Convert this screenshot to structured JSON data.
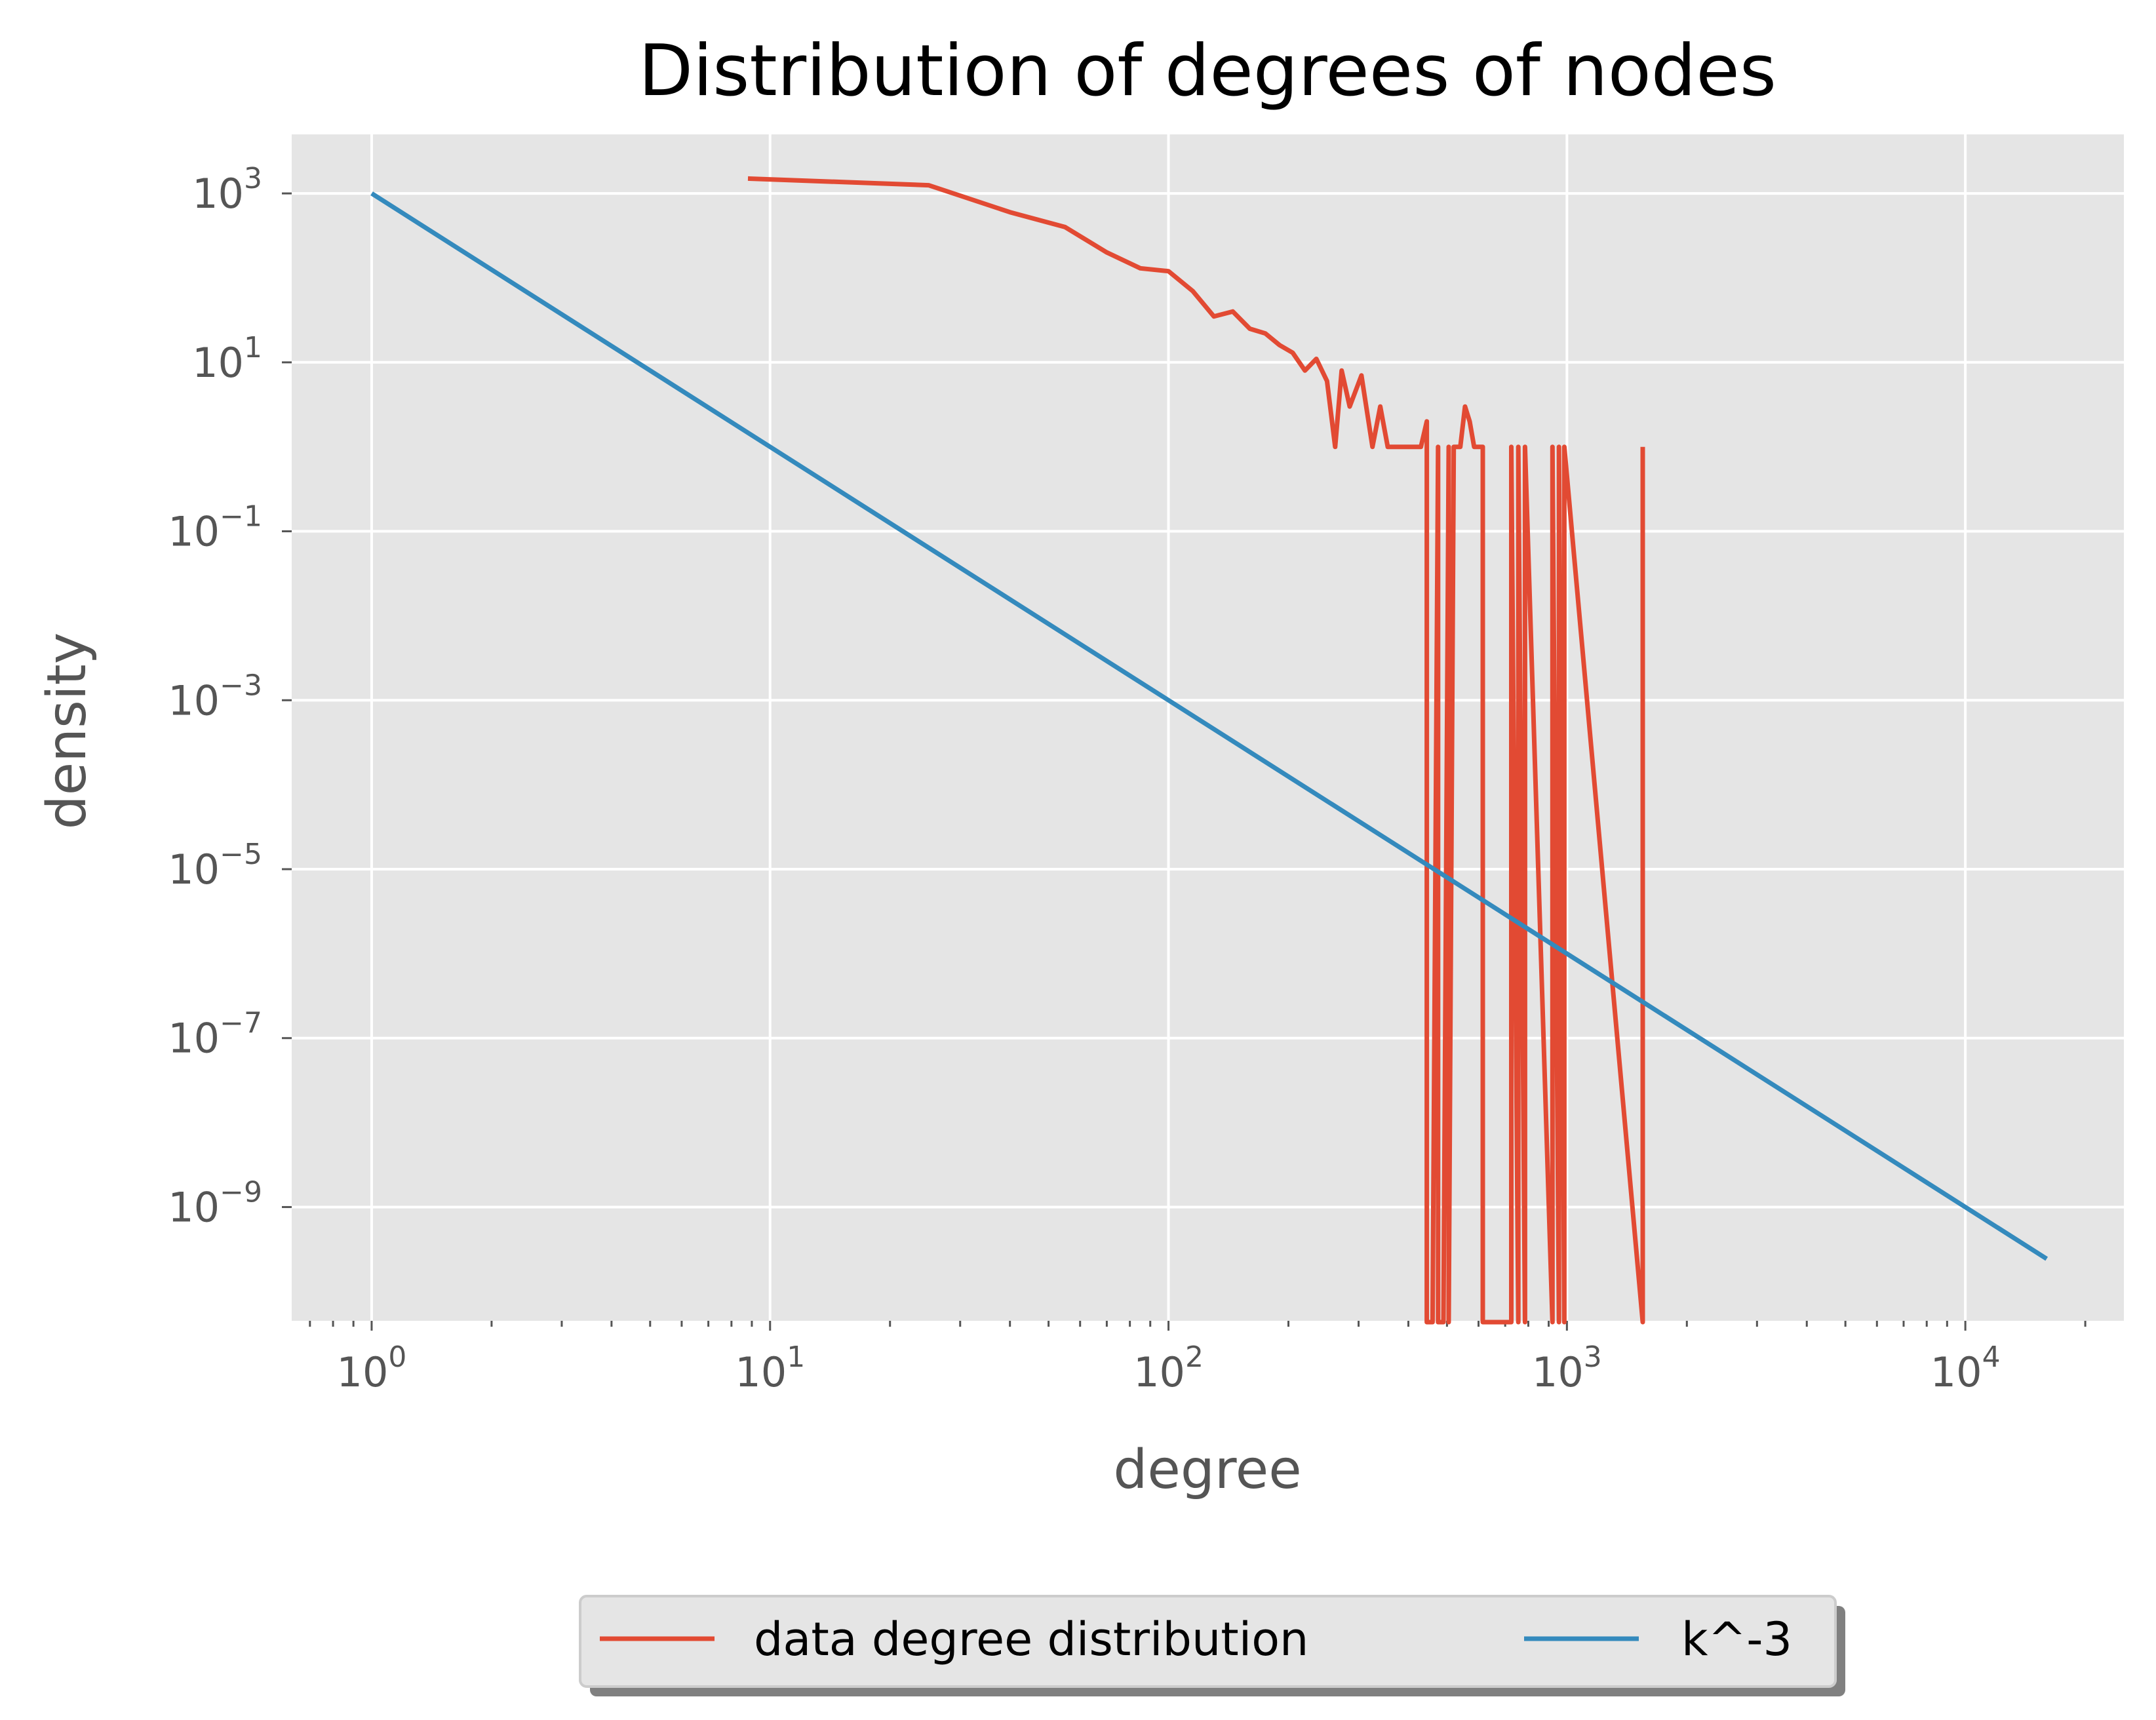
{
  "chart_data": {
    "type": "line",
    "title": "Distribution of degrees of nodes",
    "xlabel": "degree",
    "ylabel": "density",
    "xscale": "log",
    "yscale": "log",
    "xlim": [
      0.63,
      25000
    ],
    "ylim": [
      4.5e-11,
      5000
    ],
    "grid": true,
    "x_ticks": [
      {
        "value": 1,
        "base": "10",
        "exp": "0"
      },
      {
        "value": 10,
        "base": "10",
        "exp": "1"
      },
      {
        "value": 100,
        "base": "10",
        "exp": "2"
      },
      {
        "value": 1000,
        "base": "10",
        "exp": "3"
      },
      {
        "value": 10000,
        "base": "10",
        "exp": "4"
      }
    ],
    "y_ticks": [
      {
        "value": 1000.0,
        "base": "10",
        "exp": "3"
      },
      {
        "value": 10.0,
        "base": "10",
        "exp": "1"
      },
      {
        "value": 0.1,
        "base": "10",
        "exp": "−1"
      },
      {
        "value": 0.001,
        "base": "10",
        "exp": "−3"
      },
      {
        "value": 1e-05,
        "base": "10",
        "exp": "−5"
      },
      {
        "value": 1e-07,
        "base": "10",
        "exp": "−7"
      },
      {
        "value": 1e-09,
        "base": "10",
        "exp": "−9"
      }
    ],
    "legend_position": "bottom-center-outside",
    "series": [
      {
        "name": "data degree distribution",
        "color": "#E24A33",
        "x": [
          8.8,
          25,
          40,
          55,
          70,
          85,
          100,
          115,
          130,
          145,
          160,
          175,
          190,
          205,
          220,
          235,
          250,
          262,
          272,
          285,
          305,
          325,
          340,
          355,
          370,
          385,
          400,
          415,
          430,
          445,
          445,
          460,
          475,
          475,
          490,
          505,
          505,
          520,
          540,
          555,
          570,
          585,
          600,
          615,
          615,
          725,
          725,
          755,
          755,
          785,
          785,
          920,
          920,
          955,
          955,
          985,
          985,
          1550,
          1550
        ],
        "y": [
          1500,
          1250,
          600,
          400,
          200,
          130,
          120,
          70,
          35,
          40,
          25,
          22,
          16,
          13,
          8,
          11,
          6,
          1,
          8,
          3,
          7,
          1,
          3,
          1,
          1,
          1,
          1,
          1,
          1,
          2,
          0,
          0,
          1,
          0,
          0,
          1,
          0,
          1,
          1,
          3,
          2,
          1,
          1,
          1,
          0,
          0,
          1,
          0,
          1,
          0,
          1,
          0,
          1,
          0,
          1,
          0,
          1,
          0,
          1
        ]
      },
      {
        "name": "k^-3",
        "color": "#348ABD",
        "x": [
          1,
          16000
        ],
        "y": [
          1000,
          2.44e-10
        ]
      }
    ]
  }
}
